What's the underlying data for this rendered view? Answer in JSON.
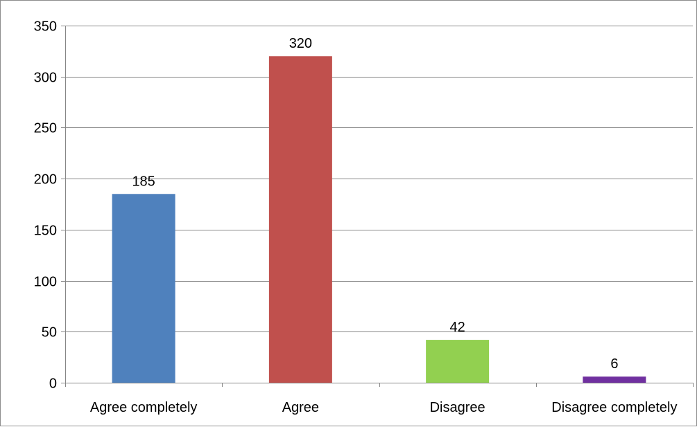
{
  "chart_data": {
    "type": "bar",
    "title": "",
    "xlabel": "",
    "ylabel": "",
    "categories": [
      "Agree completely",
      "Agree",
      "Disagree",
      "Disagree completely"
    ],
    "values": [
      185,
      320,
      42,
      6
    ],
    "data_labels": [
      "185",
      "320",
      "42",
      "6"
    ],
    "ylim": [
      0,
      350
    ],
    "yticks": [
      0,
      50,
      100,
      150,
      200,
      250,
      300,
      350
    ],
    "bar_colors": [
      "#4f81bd",
      "#c0504d",
      "#92d050",
      "#7030a0"
    ],
    "grid": true,
    "legend": "none"
  }
}
